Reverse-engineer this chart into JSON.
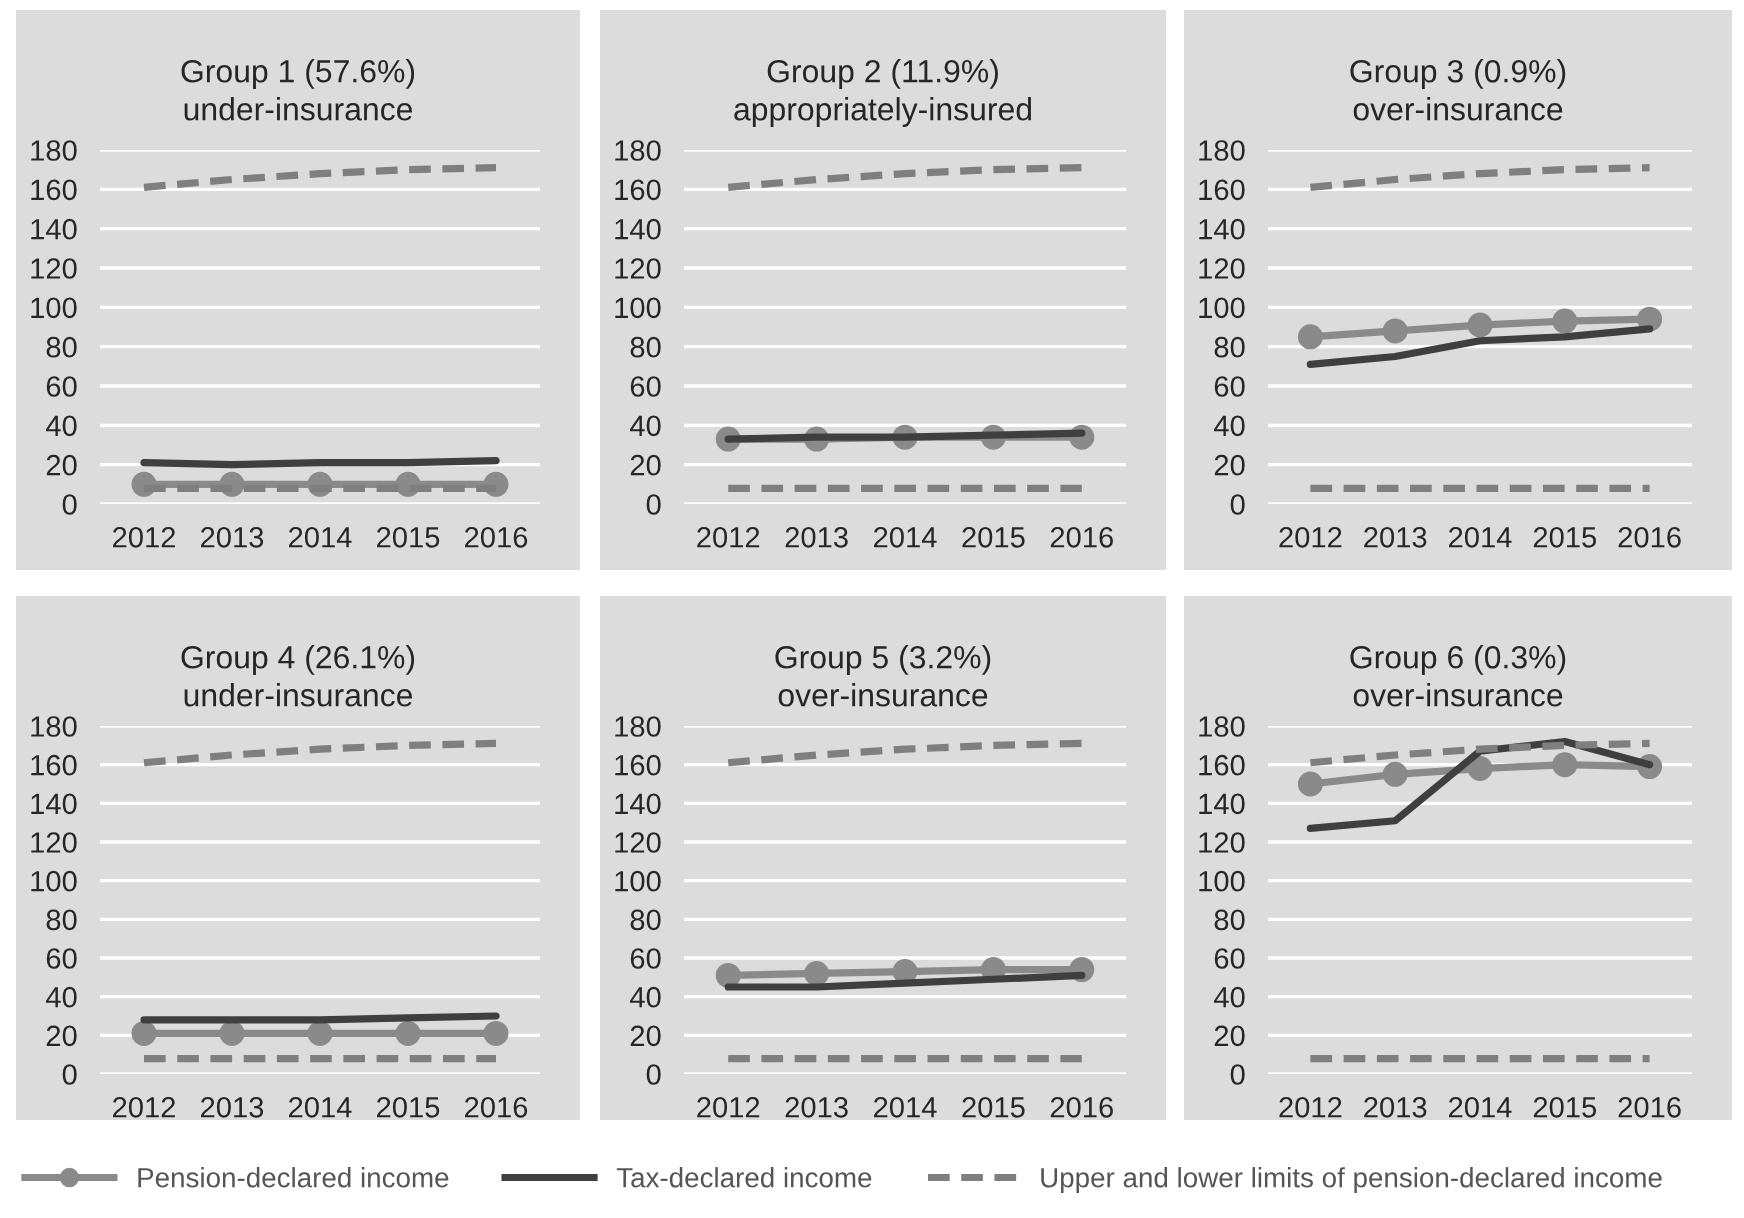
{
  "chart_data": [
    {
      "type": "line",
      "title": "Group 1 (57.6%)",
      "subtitle": "under-insurance",
      "categories": [
        "2012",
        "2013",
        "2014",
        "2015",
        "2016"
      ],
      "ylim": [
        0,
        180
      ],
      "yticks": [
        0,
        20,
        40,
        60,
        80,
        100,
        120,
        140,
        160,
        180
      ],
      "grid": "y",
      "legend": "bottom",
      "series": [
        {
          "name": "Pension-declared income",
          "color": "#8a8a8a",
          "marker": "circle",
          "line_style": "solid",
          "values": [
            10,
            10,
            10,
            10,
            10
          ]
        },
        {
          "name": "Tax-declared income",
          "color": "#3f3f3f",
          "marker": "none",
          "line_style": "solid",
          "values": [
            21,
            20,
            21,
            21,
            22
          ]
        },
        {
          "name": "Upper and lower limits of pension-declared income",
          "color": "#7f7f7f",
          "marker": "none",
          "line_style": "dashed",
          "values": [
            161,
            165,
            168,
            170,
            171
          ]
        },
        {
          "color": "#7f7f7f",
          "marker": "none",
          "line_style": "dashed",
          "values": [
            8,
            8,
            8,
            8,
            8
          ]
        }
      ]
    },
    {
      "type": "line",
      "title": "Group 2 (11.9%)",
      "subtitle": "appropriately-insured",
      "categories": [
        "2012",
        "2013",
        "2014",
        "2015",
        "2016"
      ],
      "ylim": [
        0,
        180
      ],
      "yticks": [
        0,
        20,
        40,
        60,
        80,
        100,
        120,
        140,
        160,
        180
      ],
      "grid": "y",
      "series": [
        {
          "color": "#8a8a8a",
          "marker": "circle",
          "line_style": "solid",
          "values": [
            33,
            33,
            34,
            34,
            34
          ]
        },
        {
          "color": "#3f3f3f",
          "marker": "none",
          "line_style": "solid",
          "values": [
            33,
            34,
            34,
            35,
            36
          ]
        },
        {
          "color": "#7f7f7f",
          "marker": "none",
          "line_style": "dashed",
          "values": [
            161,
            165,
            168,
            170,
            171
          ]
        },
        {
          "color": "#7f7f7f",
          "marker": "none",
          "line_style": "dashed",
          "values": [
            8,
            8,
            8,
            8,
            8
          ]
        }
      ]
    },
    {
      "type": "line",
      "title": "Group 3 (0.9%)",
      "subtitle": "over-insurance",
      "categories": [
        "2012",
        "2013",
        "2014",
        "2015",
        "2016"
      ],
      "ylim": [
        0,
        180
      ],
      "yticks": [
        0,
        20,
        40,
        60,
        80,
        100,
        120,
        140,
        160,
        180
      ],
      "grid": "y",
      "series": [
        {
          "color": "#8a8a8a",
          "marker": "circle",
          "line_style": "solid",
          "values": [
            85,
            88,
            91,
            93,
            94
          ]
        },
        {
          "color": "#3f3f3f",
          "marker": "none",
          "line_style": "solid",
          "values": [
            71,
            75,
            83,
            85,
            89
          ]
        },
        {
          "color": "#7f7f7f",
          "marker": "none",
          "line_style": "dashed",
          "values": [
            161,
            165,
            168,
            170,
            171
          ]
        },
        {
          "color": "#7f7f7f",
          "marker": "none",
          "line_style": "dashed",
          "values": [
            8,
            8,
            8,
            8,
            8
          ]
        }
      ]
    },
    {
      "type": "line",
      "title": "Group 4 (26.1%)",
      "subtitle": "under-insurance",
      "categories": [
        "2012",
        "2013",
        "2014",
        "2015",
        "2016"
      ],
      "ylim": [
        0,
        180
      ],
      "yticks": [
        0,
        20,
        40,
        60,
        80,
        100,
        120,
        140,
        160,
        180
      ],
      "grid": "y",
      "series": [
        {
          "color": "#8a8a8a",
          "marker": "circle",
          "line_style": "solid",
          "values": [
            21,
            21,
            21,
            21,
            21
          ]
        },
        {
          "color": "#3f3f3f",
          "marker": "none",
          "line_style": "solid",
          "values": [
            28,
            28,
            28,
            29,
            30
          ]
        },
        {
          "color": "#7f7f7f",
          "marker": "none",
          "line_style": "dashed",
          "values": [
            161,
            165,
            168,
            170,
            171
          ]
        },
        {
          "color": "#7f7f7f",
          "marker": "none",
          "line_style": "dashed",
          "values": [
            8,
            8,
            8,
            8,
            8
          ]
        }
      ]
    },
    {
      "type": "line",
      "title": "Group 5 (3.2%)",
      "subtitle": "over-insurance",
      "categories": [
        "2012",
        "2013",
        "2014",
        "2015",
        "2016"
      ],
      "ylim": [
        0,
        180
      ],
      "yticks": [
        0,
        20,
        40,
        60,
        80,
        100,
        120,
        140,
        160,
        180
      ],
      "grid": "y",
      "series": [
        {
          "color": "#8a8a8a",
          "marker": "circle",
          "line_style": "solid",
          "values": [
            51,
            52,
            53,
            54,
            54
          ]
        },
        {
          "color": "#3f3f3f",
          "marker": "none",
          "line_style": "solid",
          "values": [
            45,
            45,
            47,
            49,
            51
          ]
        },
        {
          "color": "#7f7f7f",
          "marker": "none",
          "line_style": "dashed",
          "values": [
            161,
            165,
            168,
            170,
            171
          ]
        },
        {
          "color": "#7f7f7f",
          "marker": "none",
          "line_style": "dashed",
          "values": [
            8,
            8,
            8,
            8,
            8
          ]
        }
      ]
    },
    {
      "type": "line",
      "title": "Group 6 (0.3%)",
      "subtitle": "over-insurance",
      "categories": [
        "2012",
        "2013",
        "2014",
        "2015",
        "2016"
      ],
      "ylim": [
        0,
        180
      ],
      "yticks": [
        0,
        20,
        40,
        60,
        80,
        100,
        120,
        140,
        160,
        180
      ],
      "grid": "y",
      "series": [
        {
          "color": "#8a8a8a",
          "marker": "circle",
          "line_style": "solid",
          "values": [
            150,
            155,
            158,
            160,
            159
          ]
        },
        {
          "color": "#3f3f3f",
          "marker": "none",
          "line_style": "solid",
          "values": [
            127,
            131,
            167,
            172,
            160
          ]
        },
        {
          "color": "#7f7f7f",
          "marker": "none",
          "line_style": "dashed",
          "values": [
            161,
            165,
            168,
            170,
            171
          ]
        },
        {
          "color": "#7f7f7f",
          "marker": "none",
          "line_style": "dashed",
          "values": [
            8,
            8,
            8,
            8,
            8
          ]
        }
      ]
    }
  ]
}
